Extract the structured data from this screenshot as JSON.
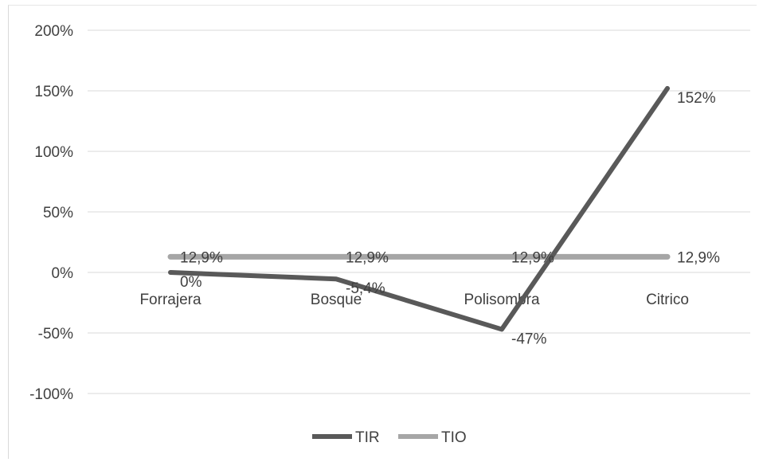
{
  "chart_data": {
    "type": "line",
    "title": "",
    "xlabel": "",
    "ylabel": "",
    "categories": [
      "Forrajera",
      "Bosque",
      "Polisombra",
      "Citrico"
    ],
    "ylim": [
      -100,
      200
    ],
    "ytick_step": 50,
    "ytick_labels": [
      "200%",
      "150%",
      "100%",
      "50%",
      "0%",
      "-50%",
      "-100%"
    ],
    "grid": true,
    "legend_position": "bottom",
    "series": [
      {
        "name": "TIR",
        "values": [
          0,
          -5.4,
          -47,
          152
        ],
        "labels": [
          "0%",
          "-5,4%",
          "-47%",
          "152%"
        ],
        "color": "#595959"
      },
      {
        "name": "TIO",
        "values": [
          12.9,
          12.9,
          12.9,
          12.9
        ],
        "labels": [
          "12,9%",
          "12,9%",
          "12,9%",
          "12,9%"
        ],
        "color": "#a6a6a6"
      }
    ]
  }
}
